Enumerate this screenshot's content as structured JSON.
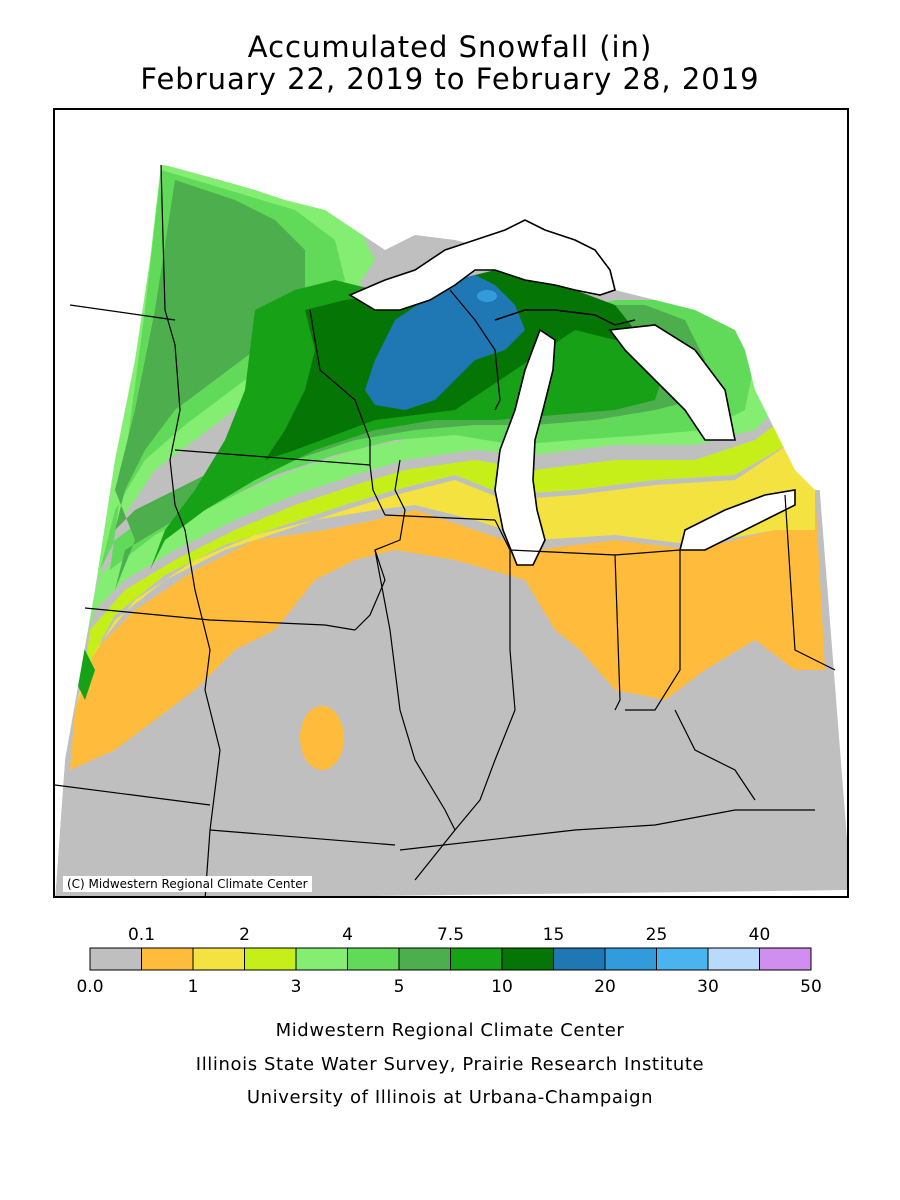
{
  "title": {
    "line1": "Accumulated Snowfall (in)",
    "line2": "February 22, 2019 to February 28, 2019"
  },
  "map": {
    "copyright": "(C) Midwestern Regional Climate Center"
  },
  "legend": {
    "colors": [
      "#bfbfbf",
      "#ffbb3b",
      "#f3e23f",
      "#c6ef1a",
      "#84ee73",
      "#61da5a",
      "#4cae4c",
      "#16a116",
      "#057605",
      "#1f77b4",
      "#329bdc",
      "#4ab4f0",
      "#b9dafb",
      "#d08ef0"
    ],
    "upper_labels": [
      "0.1",
      "2",
      "4",
      "7.5",
      "15",
      "25",
      "40"
    ],
    "lower_labels": [
      "0.0",
      "1",
      "3",
      "5",
      "10",
      "20",
      "30",
      "50"
    ]
  },
  "footer": {
    "line1": "Midwestern Regional Climate Center",
    "line2": "Illinois State Water Survey, Prairie Research Institute",
    "line3": "University of Illinois at Urbana-Champaign"
  },
  "colors": {
    "trace": "#bfbfbf",
    "orange": "#ffbb3b",
    "yellow": "#f3e23f",
    "lime": "#c6ef1a",
    "light_green": "#84ee73",
    "green_4": "#61da5a",
    "green_5": "#4cae4c",
    "green_7": "#16a116",
    "green_10": "#057605",
    "blue_15": "#1f77b4",
    "blue_20": "#329bdc",
    "lake": "#ffffff",
    "border": "#000000"
  }
}
